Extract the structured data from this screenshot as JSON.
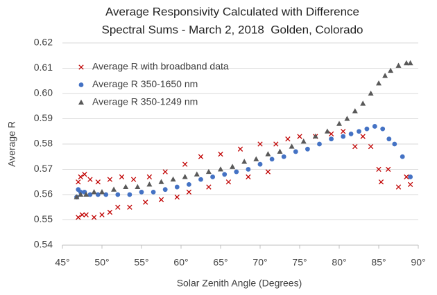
{
  "chart_data": {
    "type": "scatter",
    "title": [
      "Average Responsivity Calculated with Difference",
      "Spectral Sums - March 2, 2018  Golden, Colorado"
    ],
    "x_label": "Solar Zenith Angle (Degrees)",
    "y_label": "Average R",
    "xlim": [
      45,
      90
    ],
    "xticks": [
      {
        "value": 45,
        "label": "45°"
      },
      {
        "value": 50,
        "label": "50°"
      },
      {
        "value": 55,
        "label": "55°"
      },
      {
        "value": 60,
        "label": "60°"
      },
      {
        "value": 65,
        "label": "65°"
      },
      {
        "value": 70,
        "label": "70°"
      },
      {
        "value": 75,
        "label": "75°"
      },
      {
        "value": 80,
        "label": "80°"
      },
      {
        "value": 85,
        "label": "85°"
      },
      {
        "value": 90,
        "label": "90°"
      }
    ],
    "ylim": [
      0.54,
      0.62
    ],
    "yticks": [
      0.54,
      0.55,
      0.56,
      0.57,
      0.58,
      0.59,
      {
        "value": 0.6,
        "label": "0.60"
      },
      0.61,
      0.62
    ],
    "grid": true,
    "legend": "upper left",
    "series": [
      {
        "name": "Average R with broadband data",
        "color": "#c00000",
        "marker": "x",
        "x": [
          47.0,
          47.0,
          47.3,
          47.5,
          47.8,
          48.0,
          48.5,
          49.0,
          49.5,
          50.0,
          51.0,
          51.0,
          52.0,
          52.5,
          53.5,
          54.0,
          55.5,
          56.0,
          57.5,
          58.0,
          59.5,
          60.5,
          61.0,
          62.5,
          63.5,
          65.0,
          66.0,
          67.5,
          68.5,
          70.0,
          71.0,
          72.0,
          73.5,
          75.0,
          77.0,
          79.0,
          80.5,
          82.0,
          83.0,
          84.0,
          85.0,
          85.3,
          86.2,
          87.5,
          88.5,
          89.0
        ],
        "values": [
          0.551,
          0.565,
          0.567,
          0.552,
          0.568,
          0.552,
          0.566,
          0.551,
          0.565,
          0.552,
          0.566,
          0.553,
          0.555,
          0.567,
          0.555,
          0.566,
          0.557,
          0.567,
          0.558,
          0.569,
          0.559,
          0.572,
          0.561,
          0.575,
          0.563,
          0.576,
          0.565,
          0.578,
          0.567,
          0.58,
          0.569,
          0.58,
          0.582,
          0.583,
          0.583,
          0.584,
          0.585,
          0.579,
          0.583,
          0.579,
          0.57,
          0.565,
          0.57,
          0.563,
          0.567,
          0.564
        ]
      },
      {
        "name": "Average R 350-1650 nm",
        "color": "#4472c4",
        "marker": "circle",
        "x": [
          46.8,
          47.0,
          47.3,
          47.8,
          48.5,
          49.5,
          50.5,
          52.0,
          53.5,
          55.0,
          56.5,
          58.0,
          59.5,
          61.0,
          62.5,
          64.0,
          65.5,
          67.0,
          68.5,
          70.0,
          71.5,
          73.0,
          74.5,
          76.0,
          77.5,
          79.0,
          80.5,
          81.5,
          82.5,
          83.5,
          84.5,
          85.5,
          86.3,
          87.0,
          88.0,
          89.0
        ],
        "values": [
          0.559,
          0.562,
          0.561,
          0.561,
          0.56,
          0.56,
          0.56,
          0.56,
          0.56,
          0.561,
          0.561,
          0.562,
          0.563,
          0.564,
          0.566,
          0.567,
          0.568,
          0.569,
          0.57,
          0.572,
          0.574,
          0.575,
          0.577,
          0.578,
          0.58,
          0.582,
          0.583,
          0.584,
          0.585,
          0.586,
          0.587,
          0.586,
          0.582,
          0.58,
          0.575,
          0.567
        ]
      },
      {
        "name": "Average R 350-1249 nm",
        "color": "#595959",
        "marker": "triangle",
        "x": [
          46.8,
          47.3,
          48.0,
          49.0,
          50.0,
          51.5,
          53.0,
          54.5,
          56.0,
          57.5,
          59.0,
          60.5,
          62.0,
          63.5,
          65.0,
          66.5,
          68.0,
          69.5,
          71.0,
          72.5,
          74.0,
          75.5,
          77.0,
          78.5,
          80.0,
          81.0,
          82.0,
          83.0,
          84.0,
          85.0,
          85.8,
          86.5,
          87.5,
          88.5,
          89.0
        ],
        "values": [
          0.559,
          0.56,
          0.56,
          0.561,
          0.561,
          0.562,
          0.563,
          0.563,
          0.564,
          0.565,
          0.566,
          0.567,
          0.568,
          0.569,
          0.57,
          0.571,
          0.573,
          0.574,
          0.576,
          0.577,
          0.579,
          0.581,
          0.583,
          0.585,
          0.588,
          0.59,
          0.593,
          0.596,
          0.6,
          0.604,
          0.607,
          0.609,
          0.611,
          0.612,
          0.612
        ]
      }
    ]
  }
}
